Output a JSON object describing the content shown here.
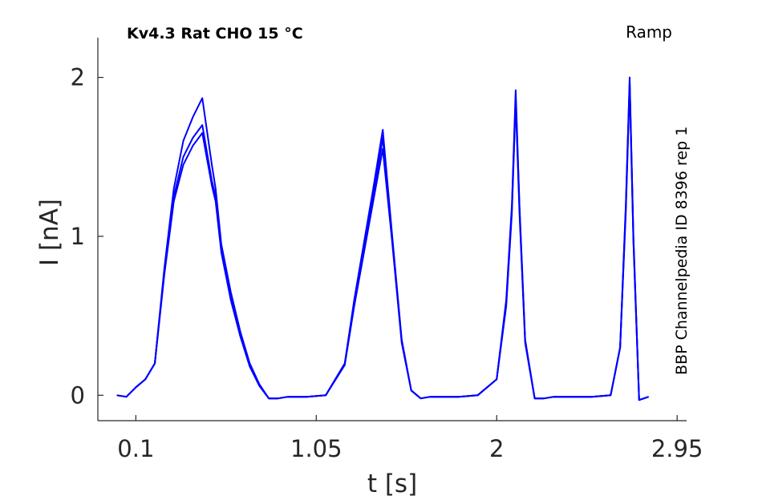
{
  "chart_data": {
    "type": "line",
    "title": "Kv4.3  Rat  CHO  15 °C",
    "protocol_label": "Ramp",
    "side_label": "BBP Channelpedia ID 8396 rep 1",
    "xlabel": "t [s]",
    "ylabel": "I [nA]",
    "xlim": [
      -0.1,
      3.0
    ],
    "ylim": [
      -0.16,
      2.25
    ],
    "x_ticks": [
      0.1,
      1.05,
      2,
      2.95
    ],
    "x_tick_labels": [
      "0.1",
      "1.05",
      "2",
      "2.95"
    ],
    "y_ticks": [
      0,
      1,
      2
    ],
    "y_tick_labels": [
      "0",
      "1",
      "2"
    ],
    "grid": false,
    "legend": "none",
    "line_color": "#0000ff",
    "series": [
      {
        "x": [
          0.0,
          0.05,
          0.1,
          0.15,
          0.2,
          0.25,
          0.3,
          0.35,
          0.4,
          0.45,
          0.5,
          0.52,
          0.55,
          0.6,
          0.65,
          0.7,
          0.75,
          0.8,
          0.85,
          0.9,
          1.0,
          1.1,
          1.2,
          1.25,
          1.35,
          1.4,
          1.45,
          1.5,
          1.55,
          1.6,
          1.65,
          1.7,
          1.8,
          1.9,
          2.0,
          2.05,
          2.08,
          2.1,
          2.12,
          2.15,
          2.2,
          2.25,
          2.3,
          2.4,
          2.5,
          2.6,
          2.65,
          2.68,
          2.7,
          2.72,
          2.75,
          2.8
        ],
        "y": [
          0.0,
          -0.01,
          0.05,
          0.1,
          0.2,
          0.8,
          1.3,
          1.6,
          1.75,
          1.87,
          1.45,
          1.3,
          0.95,
          0.65,
          0.4,
          0.2,
          0.07,
          -0.02,
          -0.02,
          -0.01,
          -0.01,
          0.0,
          0.2,
          0.6,
          1.3,
          1.67,
          1.0,
          0.35,
          0.03,
          -0.02,
          -0.01,
          -0.01,
          -0.01,
          0.0,
          0.1,
          0.6,
          1.2,
          1.92,
          1.2,
          0.35,
          -0.02,
          -0.02,
          -0.01,
          -0.01,
          -0.01,
          0.0,
          0.3,
          1.2,
          2.0,
          1.0,
          -0.03,
          -0.01
        ]
      },
      {
        "x": [
          0.0,
          0.05,
          0.1,
          0.15,
          0.2,
          0.25,
          0.3,
          0.35,
          0.4,
          0.45,
          0.5,
          0.52,
          0.55,
          0.6,
          0.65,
          0.7,
          0.75,
          0.8,
          0.85,
          0.9,
          1.0,
          1.1,
          1.2,
          1.25,
          1.35,
          1.4,
          1.45,
          1.5,
          1.55,
          1.6,
          1.65,
          1.7,
          1.8,
          1.9,
          2.0,
          2.05,
          2.08,
          2.1,
          2.12,
          2.15,
          2.2,
          2.25,
          2.3,
          2.4,
          2.5,
          2.6,
          2.65,
          2.68,
          2.7,
          2.72,
          2.75,
          2.8
        ],
        "y": [
          0.0,
          -0.01,
          0.05,
          0.1,
          0.2,
          0.78,
          1.25,
          1.5,
          1.62,
          1.7,
          1.35,
          1.25,
          0.92,
          0.62,
          0.38,
          0.19,
          0.06,
          -0.02,
          -0.02,
          -0.01,
          -0.01,
          0.0,
          0.2,
          0.58,
          1.25,
          1.62,
          0.98,
          0.34,
          0.03,
          -0.02,
          -0.01,
          -0.01,
          -0.01,
          0.0,
          0.1,
          0.58,
          1.18,
          1.88,
          1.18,
          0.34,
          -0.02,
          -0.02,
          -0.01,
          -0.01,
          -0.01,
          0.0,
          0.3,
          1.18,
          1.97,
          0.98,
          -0.03,
          -0.01
        ]
      },
      {
        "x": [
          0.0,
          0.05,
          0.1,
          0.15,
          0.2,
          0.25,
          0.3,
          0.35,
          0.4,
          0.45,
          0.5,
          0.52,
          0.55,
          0.6,
          0.65,
          0.7,
          0.75,
          0.8,
          0.85,
          0.9,
          1.0,
          1.1,
          1.2,
          1.25,
          1.35,
          1.4,
          1.45,
          1.5,
          1.55,
          1.6,
          1.65,
          1.7,
          1.8,
          1.9,
          2.0,
          2.05,
          2.08,
          2.1,
          2.12,
          2.15,
          2.2,
          2.25,
          2.3,
          2.4,
          2.5,
          2.6,
          2.65,
          2.68,
          2.7,
          2.72,
          2.75,
          2.8
        ],
        "y": [
          0.0,
          -0.01,
          0.05,
          0.1,
          0.2,
          0.76,
          1.22,
          1.45,
          1.57,
          1.65,
          1.32,
          1.22,
          0.9,
          0.6,
          0.37,
          0.18,
          0.06,
          -0.02,
          -0.02,
          -0.01,
          -0.01,
          0.0,
          0.19,
          0.56,
          1.22,
          1.55,
          0.96,
          0.33,
          0.03,
          -0.02,
          -0.01,
          -0.01,
          -0.01,
          0.0,
          0.1,
          0.56,
          1.15,
          1.85,
          1.15,
          0.33,
          -0.02,
          -0.02,
          -0.01,
          -0.01,
          -0.01,
          0.0,
          0.3,
          1.15,
          1.95,
          0.96,
          -0.03,
          -0.01
        ]
      }
    ]
  }
}
